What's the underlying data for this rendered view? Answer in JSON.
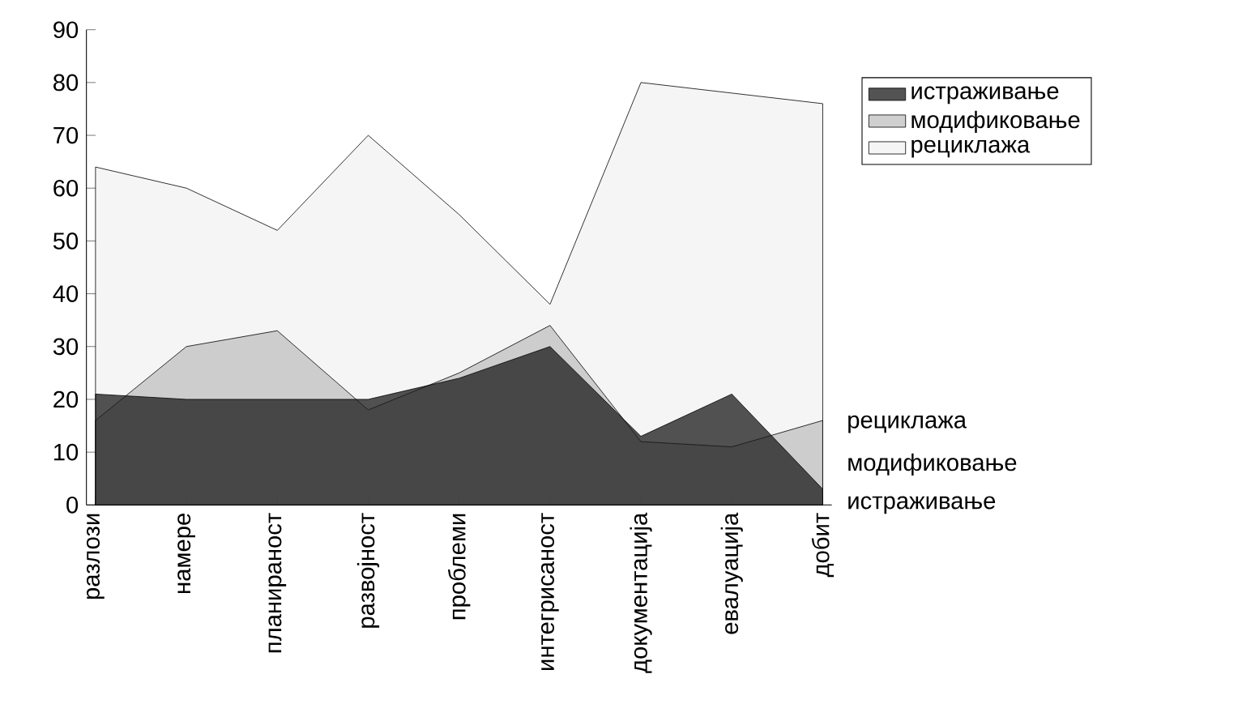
{
  "chart_data": {
    "type": "area",
    "categories": [
      "разлози",
      "намере",
      "планираност",
      "развојност",
      "проблеми",
      "интегрисаност",
      "документација",
      "евалуација",
      "добит"
    ],
    "series": [
      {
        "name": "истраживање",
        "color": "#1a1a1a",
        "values": [
          21,
          20,
          20,
          20,
          24,
          30,
          13,
          21,
          3
        ]
      },
      {
        "name": "модификовање",
        "color": "#bfbfbf",
        "values": [
          16,
          30,
          33,
          18,
          25,
          34,
          12,
          11,
          16
        ]
      },
      {
        "name": "рециклажа",
        "color": "#f2f2f2",
        "values": [
          64,
          60,
          52,
          70,
          55,
          38,
          80,
          78,
          76
        ]
      }
    ],
    "ylim": [
      0,
      90
    ],
    "yticks": [
      0,
      10,
      20,
      30,
      40,
      50,
      60,
      70,
      80,
      90
    ],
    "grid": false,
    "legend": "right"
  }
}
